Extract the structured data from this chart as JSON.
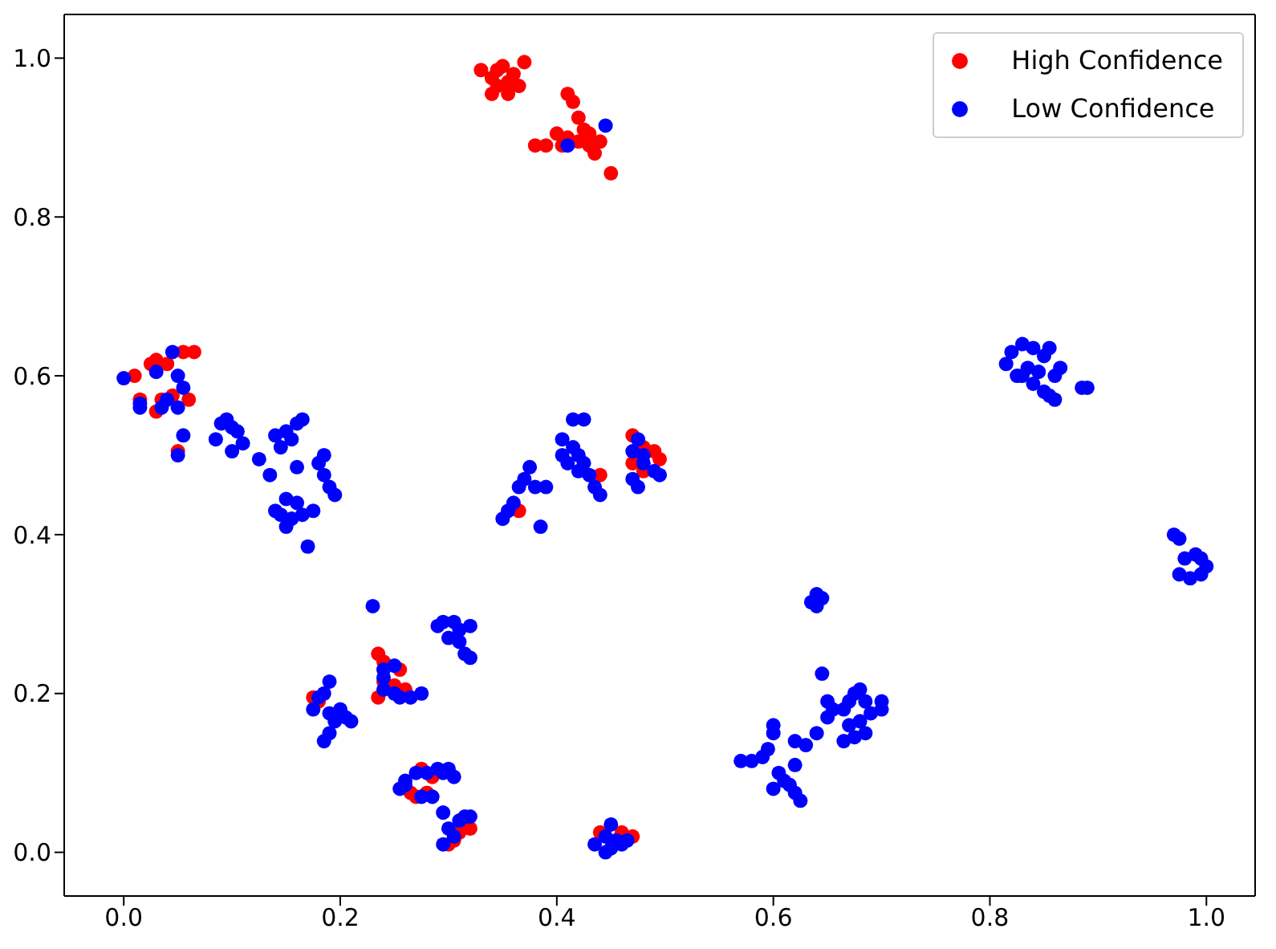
{
  "chart_data": {
    "type": "scatter",
    "xlim": [
      -0.055,
      1.045
    ],
    "ylim": [
      -0.055,
      1.055
    ],
    "xticks": [
      {
        "value": 0,
        "label": "0.0"
      },
      {
        "value": 0.2,
        "label": "0.2"
      },
      {
        "value": 0.4,
        "label": "0.4"
      },
      {
        "value": 0.6,
        "label": "0.6"
      },
      {
        "value": 0.8,
        "label": "0.8"
      },
      {
        "value": 1,
        "label": "1.0"
      }
    ],
    "yticks": [
      {
        "value": 0,
        "label": "0.0"
      },
      {
        "value": 0.2,
        "label": "0.2"
      },
      {
        "value": 0.4,
        "label": "0.4"
      },
      {
        "value": 0.6,
        "label": "0.6"
      },
      {
        "value": 0.8,
        "label": "0.8"
      },
      {
        "value": 1,
        "label": "1.0"
      }
    ],
    "grid": false,
    "legend": "top right",
    "marker": "circle",
    "series": [
      {
        "name": "High Confidence",
        "color": "#ff0000",
        "x": [
          0.33,
          0.34,
          0.345,
          0.355,
          0.36,
          0.35,
          0.37,
          0.365,
          0.34,
          0.345,
          0.355,
          0.39,
          0.4,
          0.41,
          0.42,
          0.405,
          0.43,
          0.44,
          0.435,
          0.42,
          0.41,
          0.415,
          0.425,
          0.38,
          0.45,
          0.43,
          0.01,
          0.015,
          0.025,
          0.03,
          0.04,
          0.035,
          0.045,
          0.06,
          0.065,
          0.055,
          0.05,
          0.03,
          0.47,
          0.48,
          0.49,
          0.495,
          0.48,
          0.47,
          0.44,
          0.365,
          0.235,
          0.24,
          0.255,
          0.25,
          0.26,
          0.235,
          0.24,
          0.175,
          0.18,
          0.275,
          0.27,
          0.28,
          0.285,
          0.265,
          0.31,
          0.32,
          0.305,
          0.3,
          0.44,
          0.46,
          0.47
        ],
        "values": [
          0.985,
          0.975,
          0.965,
          0.97,
          0.98,
          0.99,
          0.995,
          0.965,
          0.955,
          0.985,
          0.955,
          0.89,
          0.905,
          0.9,
          0.895,
          0.89,
          0.905,
          0.895,
          0.88,
          0.925,
          0.955,
          0.945,
          0.91,
          0.89,
          0.855,
          0.89,
          0.6,
          0.57,
          0.615,
          0.62,
          0.615,
          0.57,
          0.575,
          0.57,
          0.63,
          0.63,
          0.505,
          0.555,
          0.525,
          0.51,
          0.505,
          0.495,
          0.48,
          0.49,
          0.475,
          0.43,
          0.25,
          0.24,
          0.23,
          0.21,
          0.205,
          0.195,
          0.215,
          0.195,
          0.19,
          0.105,
          0.07,
          0.075,
          0.095,
          0.075,
          0.025,
          0.03,
          0.015,
          0.01,
          0.025,
          0.025,
          0.02
        ]
      },
      {
        "name": "Low Confidence",
        "color": "#0000ff",
        "x": [
          0.0,
          0.015,
          0.03,
          0.04,
          0.045,
          0.05,
          0.055,
          0.035,
          0.05,
          0.05,
          0.055,
          0.015,
          0.09,
          0.095,
          0.1,
          0.105,
          0.085,
          0.11,
          0.1,
          0.125,
          0.14,
          0.15,
          0.16,
          0.165,
          0.155,
          0.145,
          0.135,
          0.16,
          0.185,
          0.18,
          0.185,
          0.19,
          0.195,
          0.175,
          0.17,
          0.14,
          0.145,
          0.155,
          0.16,
          0.165,
          0.15,
          0.15,
          0.355,
          0.36,
          0.365,
          0.37,
          0.375,
          0.38,
          0.39,
          0.385,
          0.35,
          0.415,
          0.425,
          0.405,
          0.415,
          0.42,
          0.425,
          0.43,
          0.435,
          0.44,
          0.42,
          0.41,
          0.405,
          0.475,
          0.47,
          0.48,
          0.49,
          0.495,
          0.47,
          0.475,
          0.48,
          0.41,
          0.445,
          0.23,
          0.29,
          0.295,
          0.31,
          0.3,
          0.31,
          0.315,
          0.32,
          0.32,
          0.305,
          0.24,
          0.24,
          0.25,
          0.255,
          0.265,
          0.275,
          0.24,
          0.25,
          0.175,
          0.18,
          0.185,
          0.19,
          0.19,
          0.195,
          0.2,
          0.205,
          0.19,
          0.185,
          0.21,
          0.255,
          0.26,
          0.27,
          0.28,
          0.29,
          0.295,
          0.3,
          0.305,
          0.285,
          0.275,
          0.26,
          0.295,
          0.3,
          0.31,
          0.315,
          0.32,
          0.305,
          0.295,
          0.445,
          0.45,
          0.455,
          0.46,
          0.45,
          0.435,
          0.465,
          0.445,
          0.57,
          0.58,
          0.59,
          0.595,
          0.6,
          0.6,
          0.605,
          0.61,
          0.615,
          0.62,
          0.62,
          0.625,
          0.62,
          0.63,
          0.64,
          0.6,
          0.635,
          0.64,
          0.645,
          0.64,
          0.645,
          0.65,
          0.65,
          0.655,
          0.665,
          0.67,
          0.675,
          0.68,
          0.685,
          0.69,
          0.7,
          0.7,
          0.67,
          0.675,
          0.685,
          0.665,
          0.68,
          0.815,
          0.82,
          0.83,
          0.84,
          0.85,
          0.855,
          0.835,
          0.83,
          0.84,
          0.845,
          0.85,
          0.855,
          0.86,
          0.86,
          0.865,
          0.825,
          0.885,
          0.89,
          0.97,
          0.975,
          0.98,
          0.99,
          0.995,
          0.985,
          0.975,
          0.995,
          1.0
        ],
        "values": [
          0.597,
          0.56,
          0.605,
          0.57,
          0.63,
          0.6,
          0.585,
          0.56,
          0.56,
          0.5,
          0.525,
          0.565,
          0.54,
          0.545,
          0.535,
          0.53,
          0.52,
          0.515,
          0.505,
          0.495,
          0.525,
          0.53,
          0.54,
          0.545,
          0.52,
          0.51,
          0.475,
          0.485,
          0.5,
          0.49,
          0.475,
          0.46,
          0.45,
          0.43,
          0.385,
          0.43,
          0.425,
          0.42,
          0.44,
          0.425,
          0.445,
          0.41,
          0.43,
          0.44,
          0.46,
          0.47,
          0.485,
          0.46,
          0.46,
          0.41,
          0.42,
          0.545,
          0.545,
          0.52,
          0.51,
          0.5,
          0.49,
          0.475,
          0.46,
          0.45,
          0.48,
          0.49,
          0.5,
          0.52,
          0.505,
          0.49,
          0.48,
          0.475,
          0.47,
          0.46,
          0.5,
          0.89,
          0.915,
          0.31,
          0.285,
          0.29,
          0.28,
          0.27,
          0.265,
          0.25,
          0.245,
          0.285,
          0.29,
          0.22,
          0.205,
          0.2,
          0.195,
          0.195,
          0.2,
          0.23,
          0.235,
          0.18,
          0.195,
          0.2,
          0.215,
          0.175,
          0.165,
          0.18,
          0.17,
          0.15,
          0.14,
          0.165,
          0.08,
          0.09,
          0.1,
          0.1,
          0.105,
          0.1,
          0.105,
          0.095,
          0.07,
          0.07,
          0.085,
          0.05,
          0.03,
          0.04,
          0.045,
          0.045,
          0.02,
          0.01,
          0.0,
          0.005,
          0.015,
          0.01,
          0.035,
          0.01,
          0.015,
          0.02,
          0.115,
          0.115,
          0.12,
          0.13,
          0.15,
          0.16,
          0.1,
          0.09,
          0.085,
          0.11,
          0.075,
          0.065,
          0.14,
          0.135,
          0.15,
          0.08,
          0.315,
          0.325,
          0.32,
          0.31,
          0.225,
          0.19,
          0.17,
          0.18,
          0.18,
          0.19,
          0.2,
          0.205,
          0.19,
          0.175,
          0.19,
          0.18,
          0.16,
          0.145,
          0.15,
          0.14,
          0.165,
          0.615,
          0.63,
          0.64,
          0.635,
          0.625,
          0.635,
          0.61,
          0.6,
          0.59,
          0.605,
          0.58,
          0.575,
          0.57,
          0.6,
          0.61,
          0.6,
          0.585,
          0.585,
          0.4,
          0.395,
          0.37,
          0.375,
          0.37,
          0.345,
          0.35,
          0.35,
          0.36
        ]
      }
    ]
  }
}
